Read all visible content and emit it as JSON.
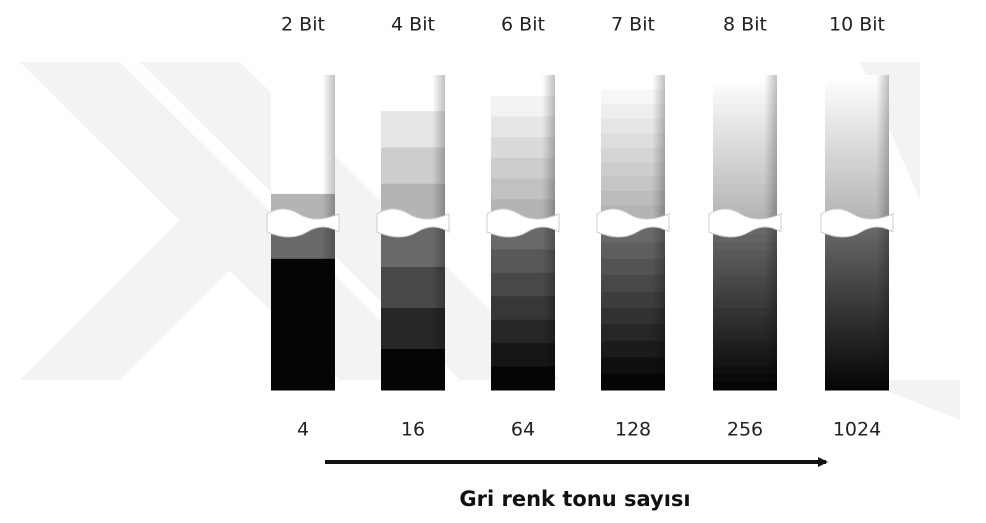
{
  "columns": [
    {
      "bits": "2 Bit",
      "tones": "4"
    },
    {
      "bits": "4 Bit",
      "tones": "16"
    },
    {
      "bits": "6 Bit",
      "tones": "64"
    },
    {
      "bits": "7 Bit",
      "tones": "128"
    },
    {
      "bits": "8 Bit",
      "tones": "256"
    },
    {
      "bits": "10 Bit",
      "tones": "1024"
    }
  ],
  "caption": "Gri renk tonu sayısı"
}
